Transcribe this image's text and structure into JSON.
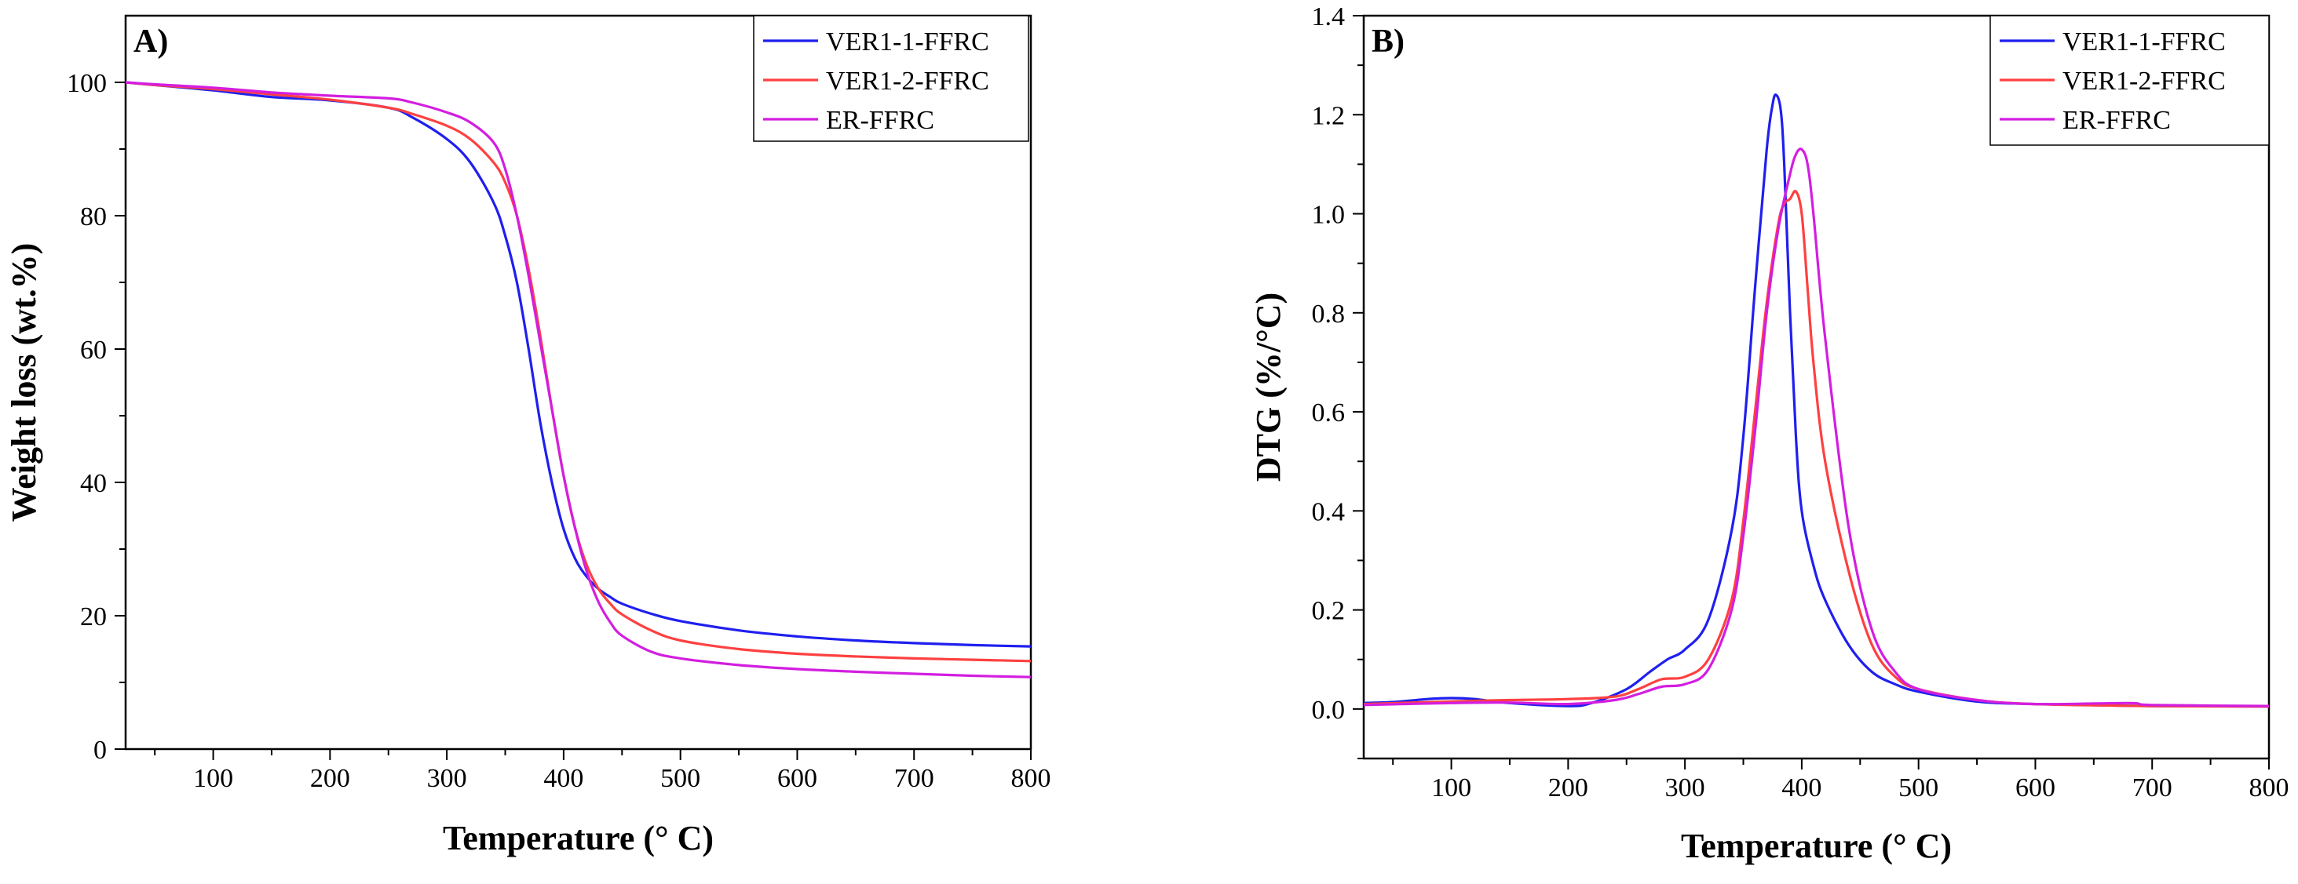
{
  "chart_data": [
    {
      "type": "line",
      "panel_label": "A)",
      "title": "",
      "xlabel": "Temperature (° C)",
      "ylabel": "Weight loss (wt.%)",
      "xlim": [
        25,
        800
      ],
      "ylim": [
        0,
        110
      ],
      "xticks": [
        100,
        200,
        300,
        400,
        500,
        600,
        700,
        800
      ],
      "yticks": [
        0,
        20,
        40,
        60,
        80,
        100
      ],
      "legend_position": "top-right",
      "series": [
        {
          "name": "VER1-1-FFRC",
          "color": "#1f1fef",
          "x": [
            25,
            50,
            100,
            150,
            200,
            250,
            270,
            300,
            320,
            340,
            350,
            360,
            370,
            380,
            390,
            400,
            410,
            420,
            430,
            440,
            450,
            475,
            500,
            550,
            600,
            650,
            700,
            750,
            800
          ],
          "y": [
            100,
            99.6,
            98.8,
            97.8,
            97.3,
            96.2,
            94.8,
            91.5,
            88,
            82,
            77,
            70,
            60,
            49,
            40,
            33,
            28.5,
            25.8,
            24,
            22.8,
            21.8,
            20.3,
            19.2,
            17.8,
            16.9,
            16.3,
            15.9,
            15.6,
            15.4
          ]
        },
        {
          "name": "VER1-2-FFRC",
          "color": "#ff4040",
          "x": [
            25,
            50,
            100,
            150,
            200,
            250,
            270,
            300,
            320,
            340,
            350,
            360,
            370,
            380,
            390,
            400,
            410,
            420,
            430,
            440,
            450,
            475,
            500,
            550,
            600,
            650,
            700,
            750,
            800
          ],
          "y": [
            100,
            99.6,
            99,
            98.2,
            97.4,
            96.2,
            95.3,
            93.5,
            91.5,
            88,
            85,
            80,
            72,
            62,
            51,
            41,
            33,
            27.5,
            24,
            21.8,
            20.2,
            17.8,
            16.3,
            15,
            14.3,
            13.9,
            13.6,
            13.4,
            13.2
          ]
        },
        {
          "name": "ER-FFRC",
          "color": "#d31ee0",
          "x": [
            25,
            50,
            100,
            150,
            200,
            250,
            270,
            300,
            320,
            340,
            350,
            360,
            370,
            380,
            390,
            400,
            410,
            420,
            430,
            440,
            450,
            475,
            500,
            550,
            600,
            650,
            700,
            750,
            800
          ],
          "y": [
            100,
            99.7,
            99.2,
            98.5,
            98,
            97.6,
            97,
            95.5,
            94,
            91,
            87,
            80,
            71,
            61,
            51,
            41,
            33,
            26.5,
            22,
            19,
            17,
            14.6,
            13.6,
            12.6,
            12,
            11.6,
            11.3,
            11,
            10.8
          ]
        }
      ]
    },
    {
      "type": "line",
      "panel_label": "B)",
      "title": "",
      "xlabel": "Temperature (° C)",
      "ylabel": "DTG (%/°C)",
      "xlim": [
        25,
        800
      ],
      "ylim": [
        -0.1,
        1.4
      ],
      "xticks": [
        100,
        200,
        300,
        400,
        500,
        600,
        700,
        800
      ],
      "yticks": [
        0.0,
        0.2,
        0.4,
        0.6,
        0.8,
        1.0,
        1.2,
        1.4
      ],
      "legend_position": "top-right",
      "series": [
        {
          "name": "VER1-1-FFRC",
          "color": "#1f1fef",
          "x": [
            25,
            50,
            80,
            100,
            120,
            150,
            200,
            220,
            250,
            270,
            285,
            300,
            320,
            340,
            350,
            360,
            370,
            375,
            378,
            382,
            385,
            390,
            395,
            400,
            410,
            420,
            440,
            460,
            480,
            500,
            550,
            600,
            700,
            800
          ],
          "y": [
            0.012,
            0.014,
            0.02,
            0.022,
            0.02,
            0.012,
            0.006,
            0.012,
            0.04,
            0.075,
            0.1,
            0.12,
            0.18,
            0.36,
            0.55,
            0.85,
            1.13,
            1.22,
            1.24,
            1.21,
            1.1,
            0.8,
            0.55,
            0.4,
            0.29,
            0.22,
            0.13,
            0.075,
            0.05,
            0.035,
            0.015,
            0.01,
            0.006,
            0.005
          ]
        },
        {
          "name": "VER1-2-FFRC",
          "color": "#ff4040",
          "x": [
            25,
            100,
            150,
            200,
            240,
            260,
            280,
            300,
            320,
            340,
            350,
            360,
            370,
            380,
            385,
            390,
            395,
            400,
            405,
            410,
            420,
            440,
            460,
            480,
            500,
            550,
            600,
            700,
            800
          ],
          "y": [
            0.01,
            0.015,
            0.018,
            0.02,
            0.025,
            0.04,
            0.06,
            0.065,
            0.1,
            0.22,
            0.38,
            0.6,
            0.82,
            0.98,
            1.02,
            1.03,
            1.045,
            1.0,
            0.85,
            0.7,
            0.5,
            0.28,
            0.13,
            0.065,
            0.04,
            0.018,
            0.01,
            0.006,
            0.005
          ]
        },
        {
          "name": "ER-FFRC",
          "color": "#d31ee0",
          "x": [
            25,
            100,
            150,
            200,
            240,
            260,
            280,
            300,
            320,
            340,
            350,
            360,
            370,
            380,
            390,
            395,
            400,
            405,
            410,
            420,
            440,
            460,
            480,
            500,
            550,
            600,
            680,
            700,
            800
          ],
          "y": [
            0.008,
            0.012,
            0.013,
            0.01,
            0.018,
            0.03,
            0.045,
            0.05,
            0.08,
            0.2,
            0.35,
            0.56,
            0.8,
            0.97,
            1.08,
            1.12,
            1.13,
            1.1,
            1.0,
            0.75,
            0.37,
            0.16,
            0.075,
            0.04,
            0.018,
            0.01,
            0.012,
            0.008,
            0.006
          ]
        }
      ]
    }
  ]
}
